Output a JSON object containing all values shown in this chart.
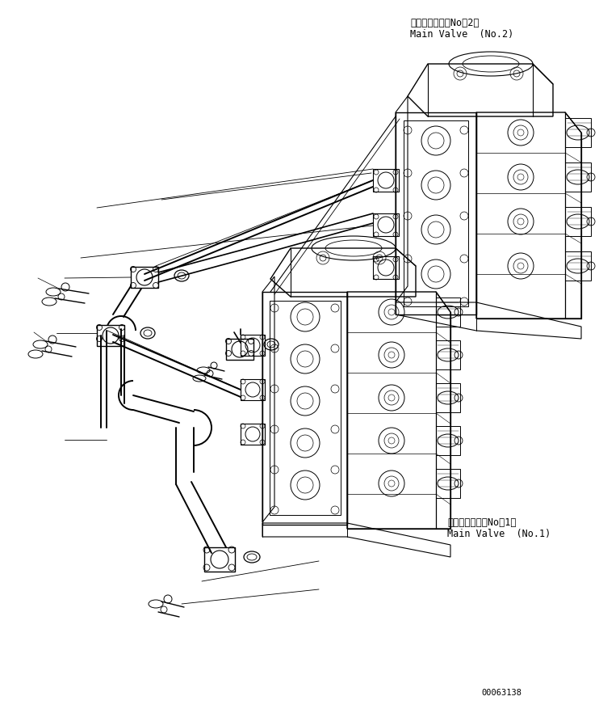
{
  "bg_color": "#ffffff",
  "line_color": "#000000",
  "fig_width": 7.42,
  "fig_height": 8.78,
  "dpi": 100,
  "label_no2_jp": "メインバルブ（No．2）",
  "label_no2_en": "Main Valve  (No.2)",
  "label_no1_jp": "メインバルブ（No．1）",
  "label_no1_en": "Main Valve  (No.1)",
  "serial": "00063138",
  "font_size_label": 8.5,
  "font_size_serial": 7.5
}
